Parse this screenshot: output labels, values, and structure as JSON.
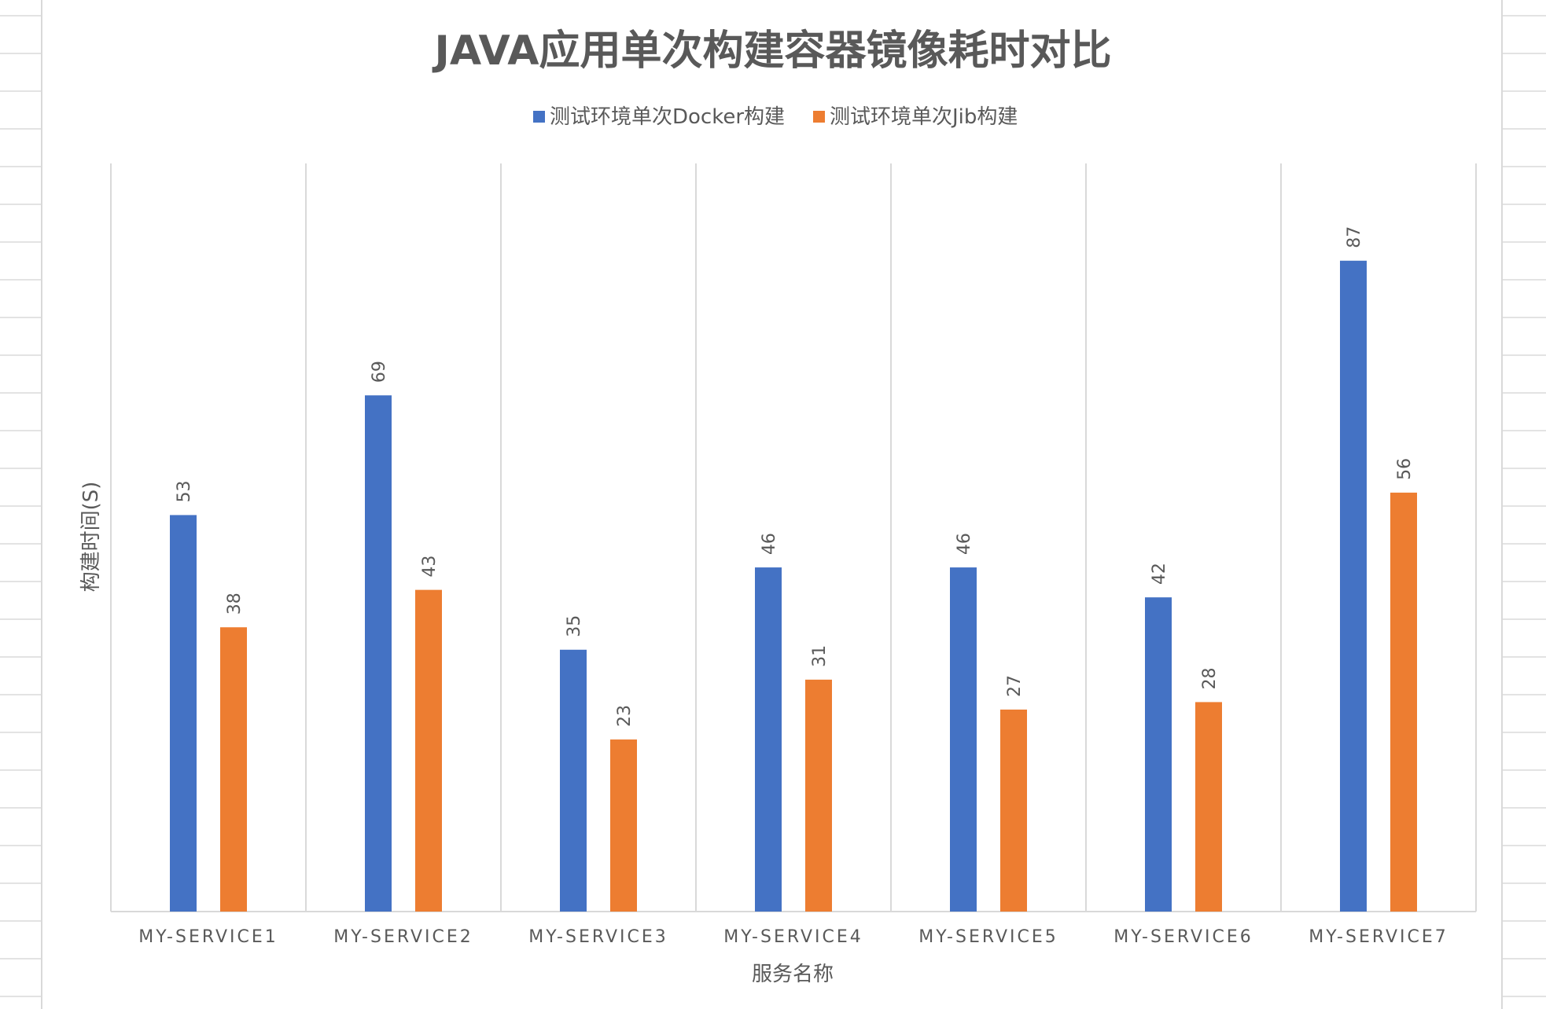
{
  "chart_data": {
    "type": "bar",
    "title": "JAVA应用单次构建容器镜像耗时对比",
    "xlabel": "服务名称",
    "ylabel": "构建时间(S)",
    "categories": [
      "MY-SERVICE1",
      "MY-SERVICE2",
      "MY-SERVICE3",
      "MY-SERVICE4",
      "MY-SERVICE5",
      "MY-SERVICE6",
      "MY-SERVICE7"
    ],
    "series": [
      {
        "name": "测试环境单次Docker构建",
        "color": "#4472c4",
        "values": [
          53,
          69,
          35,
          46,
          46,
          42,
          87
        ]
      },
      {
        "name": "测试环境单次Jib构建",
        "color": "#ed7d31",
        "values": [
          38,
          43,
          23,
          31,
          27,
          28,
          56
        ]
      }
    ],
    "ylim": [
      0,
      100
    ],
    "grid": "vertical category separators",
    "legend_position": "top",
    "data_labels": "rotated vertical above bars"
  }
}
